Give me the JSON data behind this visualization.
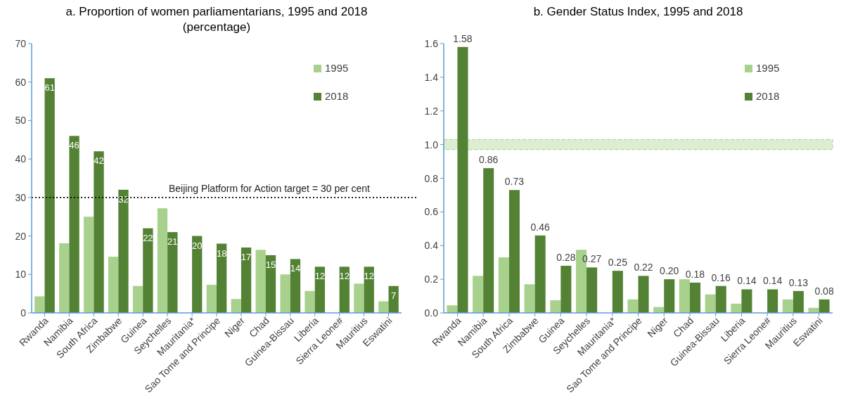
{
  "chart_data": [
    {
      "type": "bar",
      "title": "a. Proportion of women parliamentarians, 1995 and 2018\n(percentage)",
      "categories": [
        "Rwanda",
        "Namibia",
        "South Africa",
        "Zimbabwe",
        "Guinea",
        "Seychelles",
        "Mauritania*",
        "Sao Tome and Principe",
        "Niger",
        "Chad",
        "Guinea-Bissau",
        "Liberia",
        "Sierra Leone#",
        "Mauritius",
        "Eswatini"
      ],
      "series": [
        {
          "name": "1995",
          "color": "#a9d18e",
          "values": [
            4.3,
            18.1,
            25,
            14.6,
            7,
            27.2,
            null,
            7.3,
            3.6,
            16.4,
            10,
            5.7,
            null,
            7.6,
            3
          ]
        },
        {
          "name": "2018",
          "color": "#548235",
          "values": [
            61,
            46,
            42,
            32,
            22,
            21,
            20,
            18,
            17,
            15,
            14,
            12,
            12,
            12,
            7
          ],
          "value_labels": [
            "61",
            "46",
            "42",
            "32",
            "22",
            "21",
            "20",
            "18",
            "17",
            "15",
            "14",
            "12",
            "12",
            "12",
            "7"
          ]
        }
      ],
      "ylim": [
        0,
        70
      ],
      "yticks": [
        0,
        10,
        20,
        30,
        40,
        50,
        60,
        70
      ],
      "legend": "top right",
      "ref_lines": [
        {
          "axis": "y",
          "value": 30,
          "label": "Beijing Platform for Action target = 30 per cent",
          "color": "#000000",
          "line_style": "dotted"
        }
      ]
    },
    {
      "type": "bar",
      "title": "b. Gender Status Index, 1995 and 2018",
      "categories": [
        "Rwanda",
        "Namibia",
        "South Africa",
        "Zimbabwe",
        "Guinea",
        "Seychelles",
        "Mauritania*",
        "Sao Tome and Principe",
        "Niger",
        "Chad",
        "Guinea-Bissau",
        "Liberia",
        "Sierra Leone#",
        "Mauritius",
        "Eswatini"
      ],
      "series": [
        {
          "name": "1995",
          "color": "#a9d18e",
          "values": [
            0.045,
            0.22,
            0.33,
            0.17,
            0.075,
            0.375,
            null,
            0.08,
            0.035,
            0.2,
            0.11,
            0.055,
            null,
            0.08,
            0.03
          ]
        },
        {
          "name": "2018",
          "color": "#548235",
          "values": [
            1.58,
            0.86,
            0.73,
            0.46,
            0.28,
            0.27,
            0.25,
            0.22,
            0.2,
            0.18,
            0.16,
            0.14,
            0.14,
            0.13,
            0.08
          ],
          "value_labels": [
            "1.58",
            "0.86",
            "0.73",
            "0.46",
            "0.28",
            "0.27",
            "0.25",
            "0.22",
            "0.20",
            "0.18",
            "0.16",
            "0.14",
            "0.14",
            "0.13",
            "0.08"
          ]
        }
      ],
      "ylim": [
        0,
        1.6
      ],
      "yticks": [
        {
          "value": 0,
          "label": "0.0"
        },
        {
          "value": 0.2,
          "label": "0.2"
        },
        {
          "value": 0.4,
          "label": "0.4"
        },
        {
          "value": 0.6,
          "label": "0.6"
        },
        {
          "value": 0.8,
          "label": "0.8"
        },
        {
          "value": 1,
          "label": "1.0"
        },
        {
          "value": 1.2,
          "label": "1.2"
        },
        {
          "value": 1.4,
          "label": "1.4"
        },
        {
          "value": 1.6,
          "label": "1.6"
        }
      ],
      "legend": "top right",
      "bands": [
        {
          "axis": "y",
          "from": 0.97,
          "to": 1.03,
          "color": "#a9d18e"
        }
      ]
    }
  ]
}
